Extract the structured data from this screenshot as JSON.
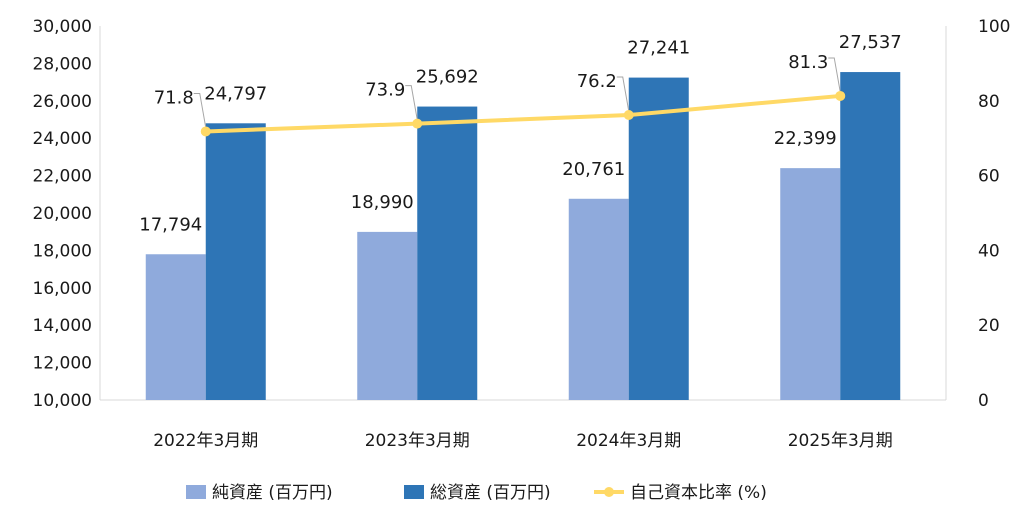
{
  "chart_data": {
    "type": "bar",
    "categories": [
      "2022年3月期",
      "2023年3月期",
      "2024年3月期",
      "2025年3月期"
    ],
    "series": [
      {
        "name": "純資産 (百万円)",
        "type": "bar",
        "axis": "left",
        "color": "#8faadc",
        "values": [
          17794,
          18990,
          20761,
          22399
        ],
        "labels": [
          "17,794",
          "18,990",
          "20,761",
          "22,399"
        ]
      },
      {
        "name": "総資産 (百万円)",
        "type": "bar",
        "axis": "left",
        "color": "#2e75b6",
        "values": [
          24797,
          25692,
          27241,
          27537
        ],
        "labels": [
          "24,797",
          "25,692",
          "27,241",
          "27,537"
        ]
      },
      {
        "name": "自己資本比率 (%)",
        "type": "line",
        "axis": "right",
        "color": "#ffd966",
        "values": [
          71.8,
          73.9,
          76.2,
          81.3
        ],
        "labels": [
          "71.8",
          "73.9",
          "76.2",
          "81.3"
        ]
      }
    ],
    "y_left": {
      "min": 10000,
      "max": 30000,
      "step": 2000,
      "ticks": [
        "10,000",
        "12,000",
        "14,000",
        "16,000",
        "18,000",
        "20,000",
        "22,000",
        "24,000",
        "26,000",
        "28,000",
        "30,000"
      ]
    },
    "y_right": {
      "min": 0,
      "max": 100,
      "step": 20,
      "ticks": [
        "0",
        "20",
        "40",
        "60",
        "80",
        "100"
      ]
    },
    "grid": false,
    "legend": "bottom-center"
  }
}
